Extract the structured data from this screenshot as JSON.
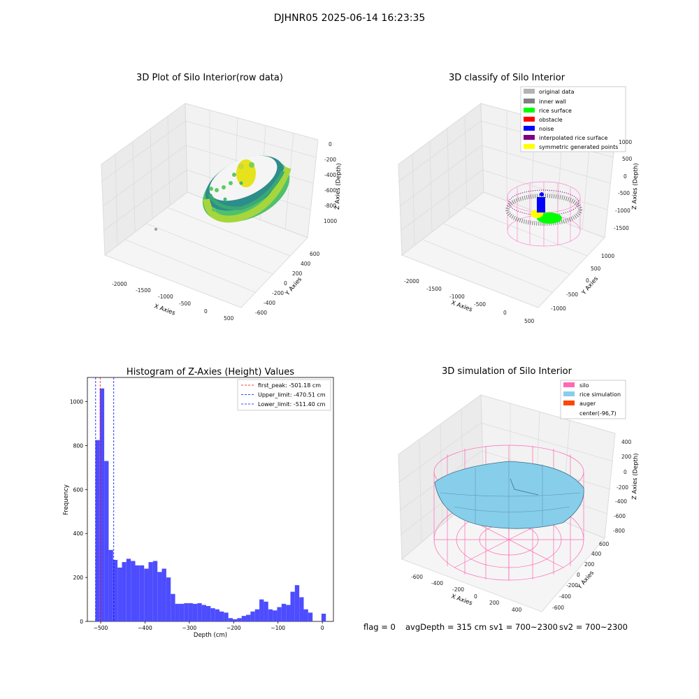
{
  "suptitle": "DJHNR05 2025-06-14 16:23:35",
  "colors": {
    "histogram_bar": "#4d4dff",
    "silo": "#ff69b4",
    "rice_simulation": "#87ceeb",
    "auger": "#ff4500",
    "original_data": "#b3b3b3",
    "inner_wall": "#808080",
    "rice_surface": "#00ff00",
    "obstacle": "#ff0000",
    "noise": "#0000ff",
    "interpolated_rice_surface": "#800080",
    "symmetric_generated_points": "#ffff00"
  },
  "panels": {
    "raw": {
      "title": "3D Plot of Silo Interior(row data)",
      "xlabel": "X Axies",
      "ylabel": "Y Axies",
      "zlabel": "Z Axies (Depth)",
      "xticks": [
        "-2000",
        "-1500",
        "-1000",
        "-500",
        "0",
        "500"
      ],
      "yticks": [
        "-600",
        "-400",
        "-200",
        "0",
        "200",
        "400",
        "600"
      ],
      "zticks": [
        "0",
        "-200",
        "-400",
        "-600",
        "-800",
        "1000"
      ]
    },
    "classify": {
      "title": "3D classify of Silo Interior",
      "xlabel": "X Axies",
      "ylabel": "Y Axies",
      "zlabel": "Z Axies (Depth)",
      "xticks": [
        "-2000",
        "-1500",
        "-1000",
        "-500",
        "0",
        "500"
      ],
      "yticks": [
        "-1000",
        "-500",
        "0",
        "500",
        "1000"
      ],
      "zticks": [
        "1000",
        "500",
        "0",
        "-500",
        "-1000",
        "-1500"
      ],
      "legend": [
        {
          "label": "original data",
          "color": "#b3b3b3"
        },
        {
          "label": "inner wall",
          "color": "#808080"
        },
        {
          "label": "rice surface",
          "color": "#00ff00"
        },
        {
          "label": "obstacle",
          "color": "#ff0000"
        },
        {
          "label": "noise",
          "color": "#0000ff"
        },
        {
          "label": "interpolated rice surface",
          "color": "#800080"
        },
        {
          "label": "symmetric generated points",
          "color": "#ffff00"
        }
      ]
    },
    "simulation": {
      "title": "3D simulation of Silo Interior",
      "xlabel": "X Axies",
      "ylabel": "Y Axies",
      "zlabel": "Z Axies (Depth)",
      "xticks": [
        "-600",
        "-400",
        "-200",
        "0",
        "200",
        "400"
      ],
      "yticks": [
        "-600",
        "-400",
        "-200",
        "0",
        "200",
        "400",
        "600"
      ],
      "zticks": [
        "400",
        "200",
        "0",
        "-200",
        "-400",
        "-600",
        "-800"
      ],
      "legend": [
        {
          "label": "silo",
          "color": "#ff69b4"
        },
        {
          "label": "rice simulation",
          "color": "#87ceeb"
        },
        {
          "label": "auger",
          "color": "#ff4500"
        },
        {
          "label": "center(-96,7)",
          "color": ""
        }
      ]
    }
  },
  "footer": {
    "flag": "flag = 0",
    "avg_depth": "avgDepth = 315 cm",
    "sv1": "sv1 = 700~2300",
    "sv2": "sv2 = 700~2300"
  },
  "chart_data": [
    {
      "type": "scatter",
      "title": "3D Plot of Silo Interior(row data)",
      "xlabel": "X Axies",
      "ylabel": "Y Axies",
      "zlabel": "Z Axies (Depth)",
      "xlim": [
        -2300,
        600
      ],
      "ylim": [
        -650,
        700
      ],
      "zlim": [
        -1100,
        50
      ]
    },
    {
      "type": "scatter",
      "title": "3D classify of Silo Interior",
      "xlabel": "X Axies",
      "ylabel": "Y Axies",
      "zlabel": "Z Axies (Depth)",
      "xlim": [
        -2300,
        600
      ],
      "ylim": [
        -1200,
        1200
      ],
      "zlim": [
        -1700,
        1100
      ],
      "series": [
        {
          "name": "original data"
        },
        {
          "name": "inner wall"
        },
        {
          "name": "rice surface"
        },
        {
          "name": "obstacle"
        },
        {
          "name": "noise"
        },
        {
          "name": "interpolated rice surface"
        },
        {
          "name": "symmetric generated points"
        }
      ]
    },
    {
      "type": "bar",
      "title": "Histogram of Z-Axies (Height) Values",
      "xlabel": "Depth (cm)",
      "ylabel": "Frequency",
      "xlim": [
        -530,
        25
      ],
      "ylim": [
        0,
        1110
      ],
      "xticks": [
        -500,
        -400,
        -300,
        -200,
        -100,
        0
      ],
      "yticks": [
        0,
        200,
        400,
        600,
        800,
        1000
      ],
      "bin_width": 10,
      "bins_start": [
        -512,
        -502,
        -492,
        -482,
        -472,
        -462,
        -452,
        -442,
        -432,
        -422,
        -412,
        -402,
        -392,
        -382,
        -372,
        -362,
        -352,
        -342,
        -332,
        -322,
        -312,
        -302,
        -292,
        -282,
        -272,
        -262,
        -252,
        -242,
        -232,
        -222,
        -212,
        -202,
        -192,
        -182,
        -172,
        -162,
        -152,
        -142,
        -132,
        -122,
        -112,
        -102,
        -92,
        -82,
        -72,
        -62,
        -52,
        -42,
        -32,
        -22,
        -12,
        -2
      ],
      "values": [
        825,
        1060,
        730,
        325,
        280,
        245,
        270,
        285,
        275,
        255,
        255,
        240,
        270,
        275,
        225,
        240,
        200,
        125,
        80,
        80,
        83,
        83,
        80,
        83,
        75,
        70,
        60,
        55,
        45,
        40,
        15,
        10,
        15,
        25,
        30,
        45,
        55,
        100,
        90,
        55,
        50,
        65,
        80,
        75,
        135,
        165,
        110,
        55,
        40,
        0,
        0,
        35
      ],
      "vlines": [
        {
          "label": "first_peak: -501.18 cm",
          "x": -501.18,
          "color": "#ff0000"
        },
        {
          "label": "Upper_limit: -470.51 cm",
          "x": -470.51,
          "color": "#0000ff"
        },
        {
          "label": "Lower_limit: -511.40 cm",
          "x": -511.4,
          "color": "#0000ff"
        }
      ],
      "legend_position": "top-right"
    },
    {
      "type": "surface",
      "title": "3D simulation of Silo Interior",
      "xlabel": "X Axies",
      "ylabel": "Y Axies",
      "zlabel": "Z Axies (Depth)",
      "xlim": [
        -700,
        500
      ],
      "ylim": [
        -650,
        700
      ],
      "zlim": [
        -900,
        480
      ],
      "series": [
        {
          "name": "silo"
        },
        {
          "name": "rice simulation"
        },
        {
          "name": "auger"
        }
      ],
      "annotations": [
        "center(-96,7)"
      ]
    }
  ]
}
